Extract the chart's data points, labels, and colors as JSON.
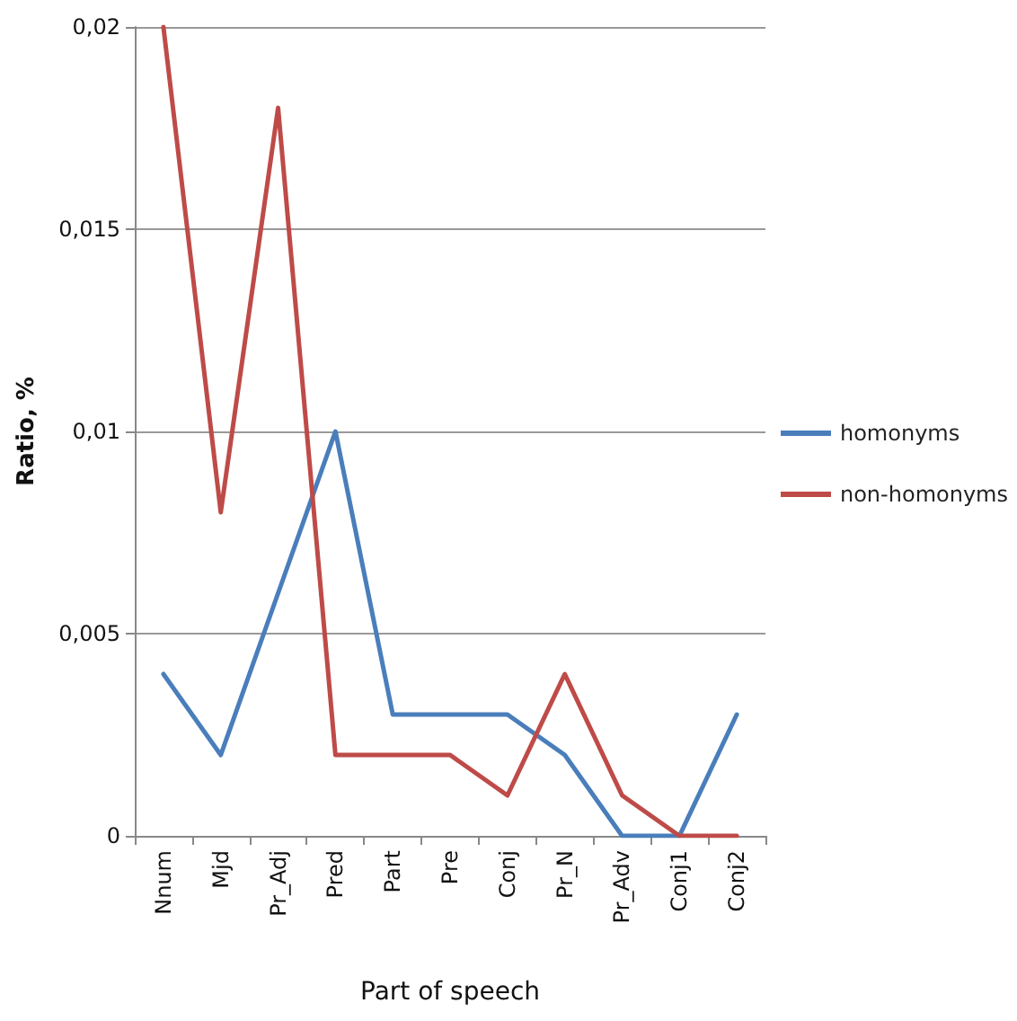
{
  "chart_data": {
    "type": "line",
    "xlabel": "Part of speech",
    "ylabel": "Ratio, %",
    "categories": [
      "Nnum",
      "Mjd",
      "Pr_Adj",
      "Pred",
      "Part",
      "Pre",
      "Conj",
      "Pr_N",
      "Pr_Adv",
      "Conj1",
      "Conj2"
    ],
    "series": [
      {
        "name": "homonyms",
        "color": "#4a7ebb",
        "values": [
          0.004,
          0.002,
          0.006,
          0.01,
          0.003,
          0.003,
          0.003,
          0.002,
          0,
          0,
          0.003
        ]
      },
      {
        "name": "non-homonyms",
        "color": "#be4b48",
        "values": [
          0.02,
          0.008,
          0.018,
          0.002,
          0.002,
          0.002,
          0.001,
          0.004,
          0.001,
          0,
          0
        ]
      }
    ],
    "ylim": [
      0,
      0.02
    ],
    "yticks": [
      {
        "value": 0,
        "label": "0"
      },
      {
        "value": 0.005,
        "label": "0,005"
      },
      {
        "value": 0.01,
        "label": "0,01"
      },
      {
        "value": 0.015,
        "label": "0,015"
      },
      {
        "value": 0.02,
        "label": "0,02"
      }
    ],
    "grid": "y",
    "legend": "right",
    "marker": "none",
    "line_style": "solid"
  }
}
